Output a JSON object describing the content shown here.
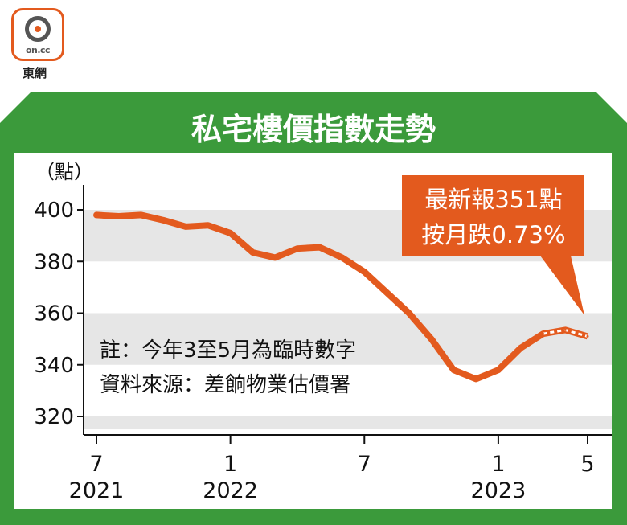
{
  "logo": {
    "text": "on.cc",
    "caption": "東網"
  },
  "callout": {
    "line1": "最新報351點",
    "line2": "按月跌0.73%"
  },
  "note": {
    "line1": "註：今年3至5月為臨時數字",
    "line2": "資料來源：差餉物業估價署"
  },
  "colors": {
    "frame": "#3b9a3b",
    "line": "#e35a1e",
    "band": "#e6e6e6",
    "callout_bg": "#e35a1e"
  },
  "chart_data": {
    "type": "line",
    "title": "私宅樓價指數走勢",
    "ylabel": "（點）",
    "ylim": [
      315,
      405
    ],
    "yticks": [
      320,
      340,
      360,
      380,
      400
    ],
    "x_labels": [
      {
        "month": "7",
        "year": "2021",
        "index": 0
      },
      {
        "month": "1",
        "year": "2022",
        "index": 6
      },
      {
        "month": "7",
        "year": "",
        "index": 12
      },
      {
        "month": "1",
        "year": "2023",
        "index": 18
      },
      {
        "month": "5",
        "year": "",
        "index": 22
      }
    ],
    "series": [
      {
        "x": [
          "2021-07",
          "2021-08",
          "2021-09",
          "2021-10",
          "2021-11",
          "2021-12",
          "2022-01",
          "2022-02",
          "2022-03",
          "2022-04",
          "2022-05",
          "2022-06",
          "2022-07",
          "2022-08",
          "2022-09",
          "2022-10",
          "2022-11",
          "2022-12",
          "2023-01",
          "2023-02",
          "2023-03",
          "2023-04",
          "2023-05"
        ],
        "values": [
          398,
          397.5,
          398,
          396,
          393.5,
          394,
          391,
          383.5,
          381.5,
          385,
          385.5,
          381.5,
          376,
          368,
          360,
          350,
          338,
          334.5,
          338,
          346.5,
          352,
          353.5,
          351
        ],
        "provisional_from": "2023-03"
      }
    ]
  }
}
